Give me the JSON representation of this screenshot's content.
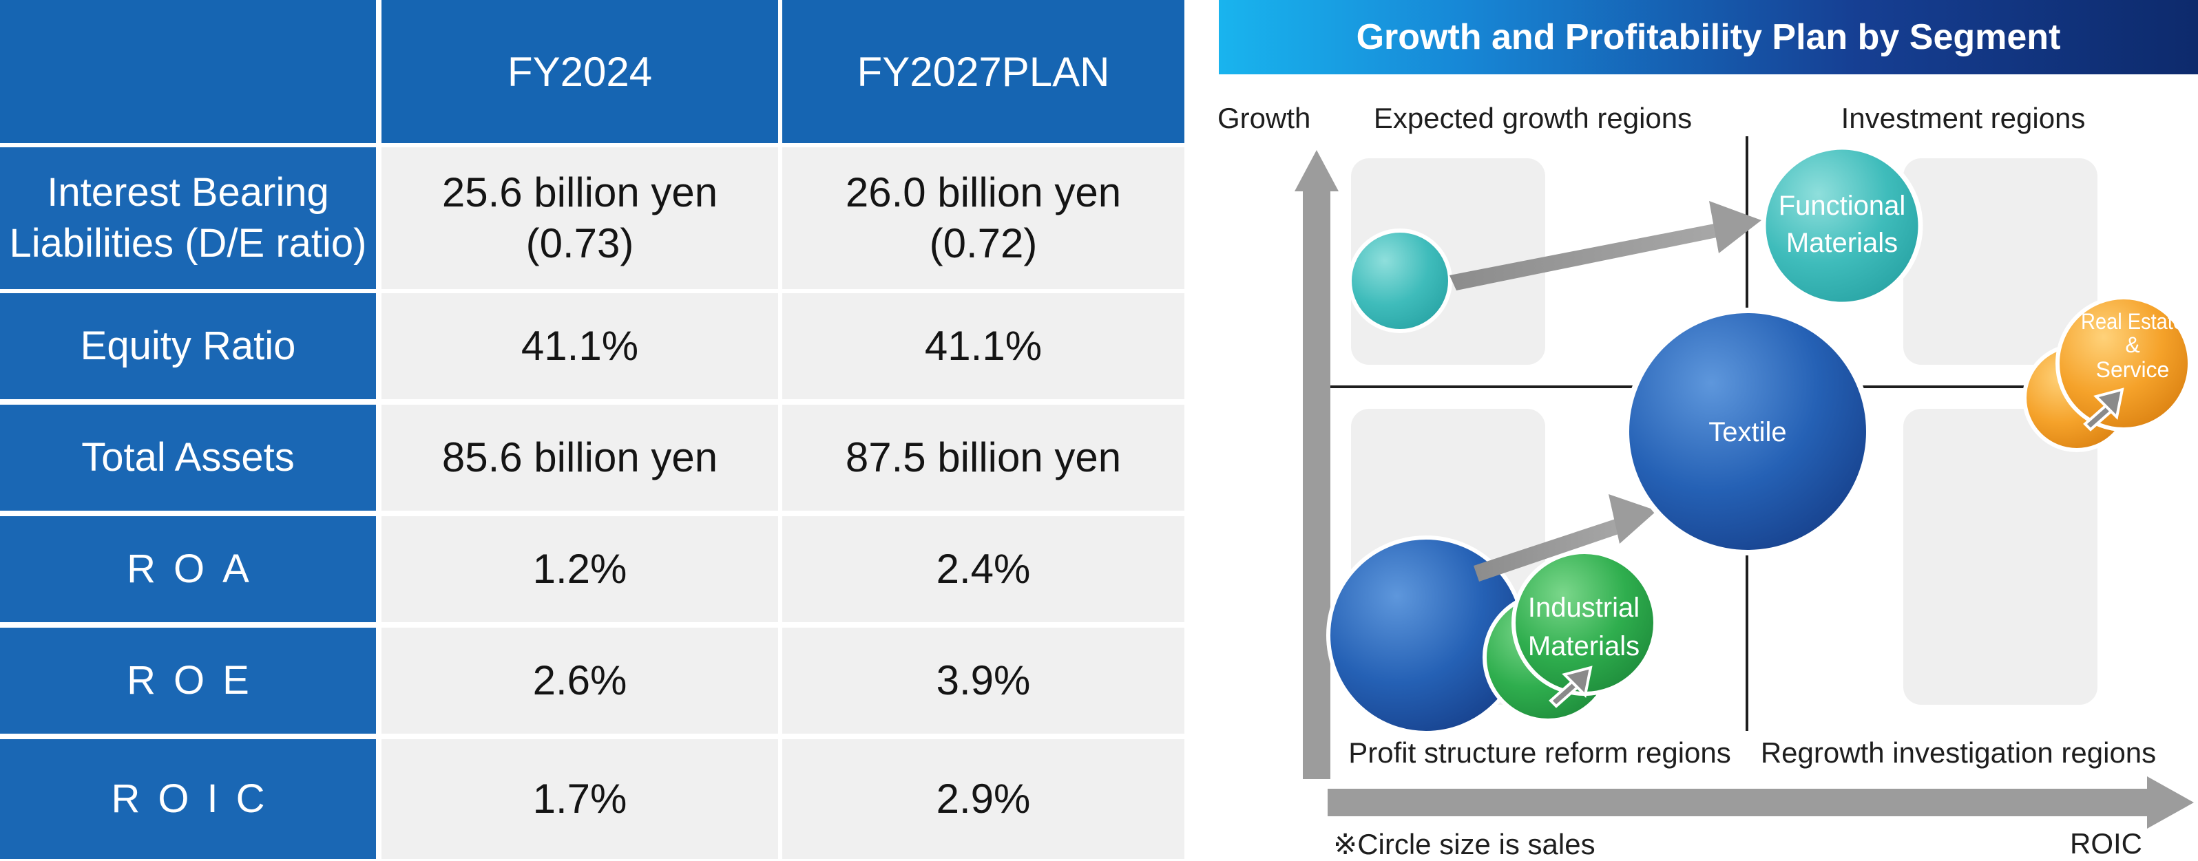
{
  "table": {
    "columns": [
      "",
      "FY2024",
      "FY2027PLAN"
    ],
    "rows": [
      {
        "label": [
          "Interest Bearing",
          "Liabilities (D/E ratio)"
        ],
        "fy2024": [
          "25.6 billion yen",
          "(0.73)"
        ],
        "fy2027": [
          "26.0 billion yen",
          "(0.72)"
        ]
      },
      {
        "label": [
          "Equity Ratio"
        ],
        "fy2024": [
          "41.1%"
        ],
        "fy2027": [
          "41.1%"
        ]
      },
      {
        "label": [
          "Total Assets"
        ],
        "fy2024": [
          "85.6 billion yen"
        ],
        "fy2027": [
          "87.5 billion yen"
        ]
      },
      {
        "label": [
          "ROA"
        ],
        "fy2024": [
          "1.2%"
        ],
        "fy2027": [
          "2.4%"
        ]
      },
      {
        "label": [
          "ROE"
        ],
        "fy2024": [
          "2.6%"
        ],
        "fy2027": [
          "3.9%"
        ]
      },
      {
        "label": [
          "ROIC"
        ],
        "fy2024": [
          "1.7%"
        ],
        "fy2027": [
          "2.9%"
        ]
      }
    ]
  },
  "diagram": {
    "title": "Growth and Profitability Plan by Segment",
    "y_axis_label": "Growth",
    "x_axis_label": "ROIC",
    "quadrants": {
      "top_left": "Expected growth regions",
      "top_right": "Investment regions",
      "bottom_left": "Profit structure reform regions",
      "bottom_right": "Regrowth investigation regions"
    },
    "segments": {
      "functional": [
        "Functional",
        "Materials"
      ],
      "textile": [
        "Textile"
      ],
      "industrial": [
        "Industrial",
        "Materials"
      ],
      "realestate": [
        "Real Estate",
        "&",
        "Service"
      ]
    },
    "footnote": "※Circle size is sales",
    "colors": {
      "table_header": "#1665b2",
      "teal": "#3fbcbb",
      "blue": "#1f58aa",
      "green": "#2aa64a",
      "orange": "#f29b1f",
      "arrow_gray": "#9c9c9c"
    }
  }
}
